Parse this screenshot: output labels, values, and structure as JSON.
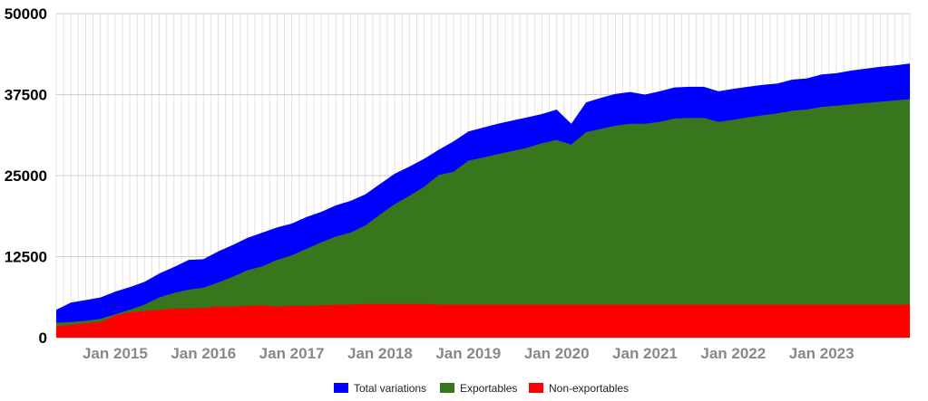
{
  "chart_data": {
    "type": "area",
    "stacked": false,
    "title": "",
    "xlabel": "",
    "ylabel": "",
    "ylim": [
      0,
      50000
    ],
    "yticks": [
      "0",
      "12500",
      "25000",
      "37500",
      "50000"
    ],
    "xticks": [
      "Jan 2015",
      "Jan 2016",
      "Jan 2017",
      "Jan 2018",
      "Jan 2019",
      "Jan 2020",
      "Jan 2021",
      "Jan 2022",
      "Jan 2023"
    ],
    "grid": true,
    "legend_position": "bottom",
    "x": [
      "2014-05",
      "2014-07",
      "2014-09",
      "2014-11",
      "2015-01",
      "2015-03",
      "2015-05",
      "2015-07",
      "2015-09",
      "2015-11",
      "2016-01",
      "2016-03",
      "2016-05",
      "2016-07",
      "2016-09",
      "2016-11",
      "2017-01",
      "2017-03",
      "2017-05",
      "2017-07",
      "2017-09",
      "2017-11",
      "2018-01",
      "2018-03",
      "2018-05",
      "2018-07",
      "2018-09",
      "2018-11",
      "2019-01",
      "2019-03",
      "2019-05",
      "2019-07",
      "2019-09",
      "2019-11",
      "2020-01",
      "2020-03",
      "2020-05",
      "2020-07",
      "2020-09",
      "2020-11",
      "2021-01",
      "2021-03",
      "2021-05",
      "2021-07",
      "2021-09",
      "2021-11",
      "2022-01",
      "2022-03",
      "2022-05",
      "2022-07",
      "2022-09",
      "2022-11",
      "2023-01",
      "2023-03",
      "2023-05",
      "2023-07",
      "2023-09",
      "2023-11",
      "2024-01"
    ],
    "series": [
      {
        "name": "Total variations",
        "color": "#0000ff",
        "values": [
          4300,
          5400,
          5800,
          6200,
          7100,
          7800,
          8600,
          9900,
          10900,
          12000,
          12100,
          13300,
          14300,
          15400,
          16200,
          17000,
          17600,
          18600,
          19400,
          20400,
          21100,
          22100,
          23700,
          25300,
          26400,
          27600,
          29000,
          30300,
          31800,
          32400,
          33000,
          33500,
          34000,
          34500,
          35200,
          33000,
          36300,
          37000,
          37600,
          37900,
          37500,
          38000,
          38600,
          38700,
          38700,
          38000,
          38400,
          38700,
          39000,
          39200,
          39800,
          40000,
          40600,
          40800,
          41200,
          41500,
          41800,
          42000,
          42300
        ]
      },
      {
        "name": "Exportables",
        "color": "#38761d",
        "values": [
          2300,
          2400,
          2600,
          2900,
          3600,
          4300,
          5100,
          6200,
          6900,
          7400,
          7700,
          8500,
          9400,
          10400,
          11000,
          12000,
          12700,
          13700,
          14700,
          15600,
          16200,
          17300,
          19000,
          20600,
          21900,
          23300,
          25100,
          25600,
          27300,
          27800,
          28300,
          28800,
          29300,
          30000,
          30500,
          29800,
          31700,
          32200,
          32700,
          33000,
          33000,
          33300,
          33800,
          33900,
          33900,
          33300,
          33600,
          34000,
          34300,
          34600,
          35000,
          35200,
          35600,
          35800,
          36000,
          36200,
          36400,
          36600,
          36800
        ]
      },
      {
        "name": "Non-exportables",
        "color": "#ff0000",
        "values": [
          1800,
          2000,
          2200,
          2400,
          3400,
          3900,
          4100,
          4300,
          4500,
          4500,
          4600,
          4800,
          4800,
          4900,
          5000,
          4800,
          4900,
          4900,
          5000,
          5100,
          5100,
          5200,
          5200,
          5200,
          5200,
          5200,
          5100,
          5100,
          5100,
          5100,
          5100,
          5100,
          5100,
          5100,
          5100,
          5100,
          5100,
          5100,
          5100,
          5100,
          5100,
          5100,
          5100,
          5100,
          5100,
          5100,
          5100,
          5100,
          5100,
          5100,
          5100,
          5100,
          5100,
          5100,
          5100,
          5100,
          5100,
          5100,
          5100
        ]
      }
    ]
  }
}
